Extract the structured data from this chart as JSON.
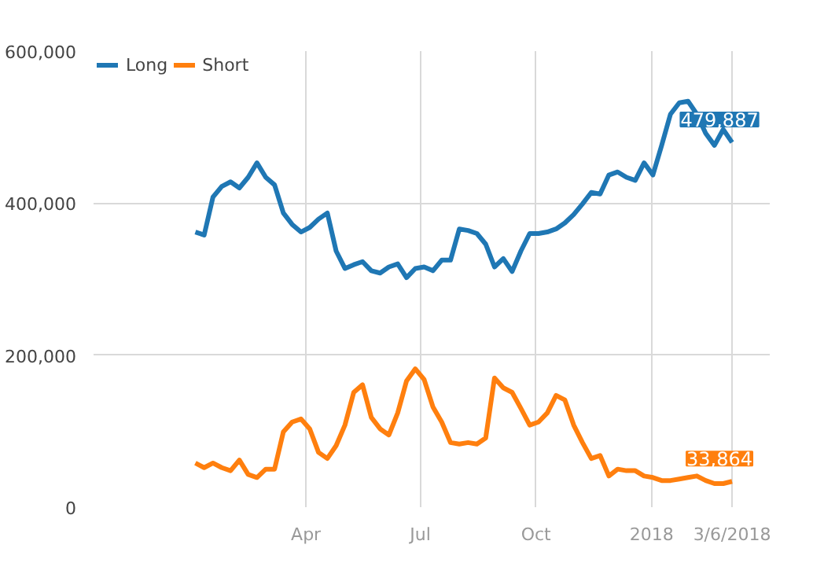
{
  "chart_data": {
    "type": "line",
    "x": [
      "2017-01-03",
      "2017-01-10",
      "2017-01-17",
      "2017-01-24",
      "2017-01-31",
      "2017-02-07",
      "2017-02-14",
      "2017-02-21",
      "2017-02-28",
      "2017-03-07",
      "2017-03-14",
      "2017-03-21",
      "2017-03-28",
      "2017-04-04",
      "2017-04-11",
      "2017-04-18",
      "2017-04-25",
      "2017-05-02",
      "2017-05-09",
      "2017-05-16",
      "2017-05-23",
      "2017-05-30",
      "2017-06-06",
      "2017-06-13",
      "2017-06-20",
      "2017-06-27",
      "2017-07-04",
      "2017-07-11",
      "2017-07-18",
      "2017-07-25",
      "2017-08-01",
      "2017-08-08",
      "2017-08-15",
      "2017-08-22",
      "2017-08-29",
      "2017-09-05",
      "2017-09-12",
      "2017-09-19",
      "2017-09-26",
      "2017-10-03",
      "2017-10-10",
      "2017-10-17",
      "2017-10-24",
      "2017-10-31",
      "2017-11-07",
      "2017-11-14",
      "2017-11-21",
      "2017-11-28",
      "2017-12-05",
      "2017-12-12",
      "2017-12-19",
      "2017-12-26",
      "2018-01-02",
      "2018-01-09",
      "2018-01-16",
      "2018-01-23",
      "2018-01-30",
      "2018-02-06",
      "2018-02-13",
      "2018-02-20",
      "2018-02-27",
      "2018-03-06"
    ],
    "series": [
      {
        "name": "Long",
        "color": "#1f77b4",
        "values": [
          362000,
          358000,
          408000,
          422000,
          428000,
          420000,
          434000,
          453000,
          434000,
          424000,
          387000,
          372000,
          362000,
          368000,
          379000,
          387000,
          337000,
          314000,
          319000,
          323000,
          311000,
          308000,
          316000,
          320000,
          302000,
          314000,
          316000,
          311000,
          325000,
          325000,
          366000,
          364000,
          360000,
          346000,
          316000,
          327000,
          310000,
          337000,
          360000,
          360000,
          362000,
          366000,
          374000,
          385000,
          399000,
          414000,
          412000,
          437000,
          441000,
          434000,
          430000,
          453000,
          437000,
          476000,
          517000,
          532000,
          534000,
          517000,
          492000,
          476000,
          497000,
          479887
        ]
      },
      {
        "name": "Short",
        "color": "#ff7f0e",
        "values": [
          58000,
          52000,
          58000,
          52000,
          48000,
          62000,
          43000,
          39000,
          50000,
          50000,
          99000,
          112000,
          116000,
          103000,
          72000,
          64000,
          81000,
          108000,
          151000,
          161000,
          118000,
          103000,
          95000,
          124000,
          166000,
          182000,
          168000,
          132000,
          112000,
          85000,
          83000,
          85000,
          83000,
          91000,
          170000,
          157000,
          151000,
          130000,
          108000,
          112000,
          124000,
          147000,
          141000,
          108000,
          85000,
          64000,
          68000,
          41000,
          50000,
          48000,
          48000,
          41000,
          39000,
          35000,
          35000,
          37000,
          39000,
          41000,
          35000,
          31000,
          31000,
          33864
        ]
      }
    ],
    "xlim": [
      "2016-10-14",
      "2018-04-05"
    ],
    "ylim": [
      0,
      600000
    ],
    "xticks": [
      {
        "value": "2017-04-01",
        "label": "Apr"
      },
      {
        "value": "2017-07-01",
        "label": "Jul"
      },
      {
        "value": "2017-10-01",
        "label": "Oct"
      },
      {
        "value": "2018-01-01",
        "label": "2018"
      },
      {
        "value": "2018-03-06",
        "label": "3/6/2018"
      }
    ],
    "yticks": [
      {
        "value": 0,
        "label": "0"
      },
      {
        "value": 200000,
        "label": "200,000"
      },
      {
        "value": 400000,
        "label": "400,000"
      },
      {
        "value": 600000,
        "label": "600,000"
      }
    ],
    "annotations": [
      {
        "text": "479,887",
        "x": "2018-03-06",
        "y": 479887
      },
      {
        "text": "33,864",
        "x": "2018-03-06",
        "y": 33864
      }
    ],
    "grid": true,
    "legend": "top left"
  }
}
